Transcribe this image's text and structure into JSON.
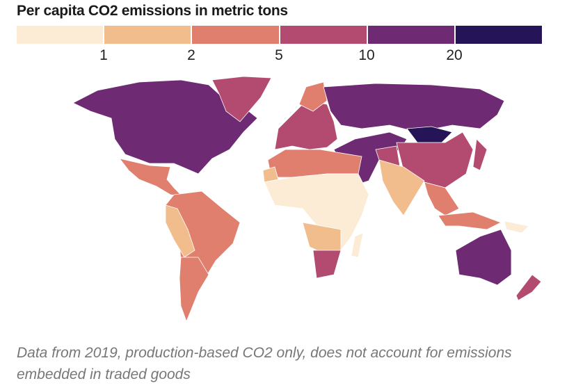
{
  "title": "Per capita CO2 emissions in metric tons",
  "legend": {
    "colors": [
      "#fcebd5",
      "#f2bd8d",
      "#e07f6d",
      "#b34a6f",
      "#6e2a73",
      "#261458"
    ],
    "ticks": [
      "1",
      "2",
      "5",
      "10",
      "20"
    ]
  },
  "regions": {
    "north_america": "#6e2a73",
    "greenland": "#b34a6f",
    "mexico_central": "#e07f6d",
    "south_america": "#e07f6d",
    "andes": "#f2bd8d",
    "chile_arg": "#e07f6d",
    "europe": "#b34a6f",
    "scandinavia": "#e07f6d",
    "russia": "#6e2a73",
    "china": "#b34a6f",
    "mongolia": "#261458",
    "middle_east": "#6e2a73",
    "iran": "#b34a6f",
    "india": "#f2bd8d",
    "se_asia": "#e07f6d",
    "africa": "#fcebd5",
    "north_africa": "#e07f6d",
    "west_sahara": "#f2bd8d",
    "southern_africa": "#f2bd8d",
    "south_africa": "#b34a6f",
    "australia": "#6e2a73",
    "new_zealand": "#b34a6f",
    "japan": "#b34a6f",
    "indonesia": "#e07f6d",
    "png": "#fcebd5",
    "madagascar": "#fcebd5"
  },
  "note": "Data from 2019, production-based CO2 only, does not account for emissions embedded in traded goods"
}
